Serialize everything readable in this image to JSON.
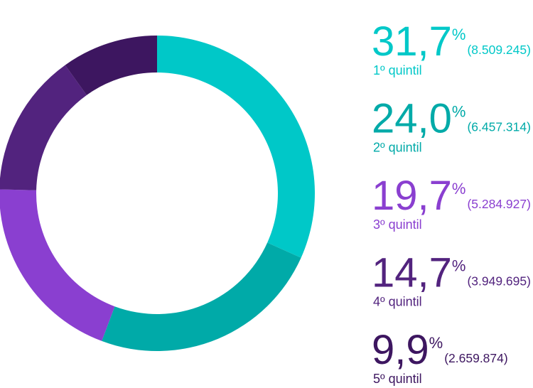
{
  "chart_data": {
    "type": "donut",
    "categories": [
      "1º quintil",
      "2º quintil",
      "3º quintil",
      "4º quintil",
      "5º quintil"
    ],
    "values": [
      31.7,
      24.0,
      19.7,
      14.7,
      9.9
    ],
    "value_labels": [
      "31,7",
      "24,0",
      "19,7",
      "14,7",
      "9,9"
    ],
    "unit": "%",
    "count_labels": [
      "(8.509.245)",
      "(6.457.314)",
      "(5.284.927)",
      "(3.949.695)",
      "(2.659.874)"
    ],
    "colors": [
      "#00c8c8",
      "#00aaa8",
      "#8a3fd0",
      "#52237e",
      "#3d1660"
    ]
  }
}
